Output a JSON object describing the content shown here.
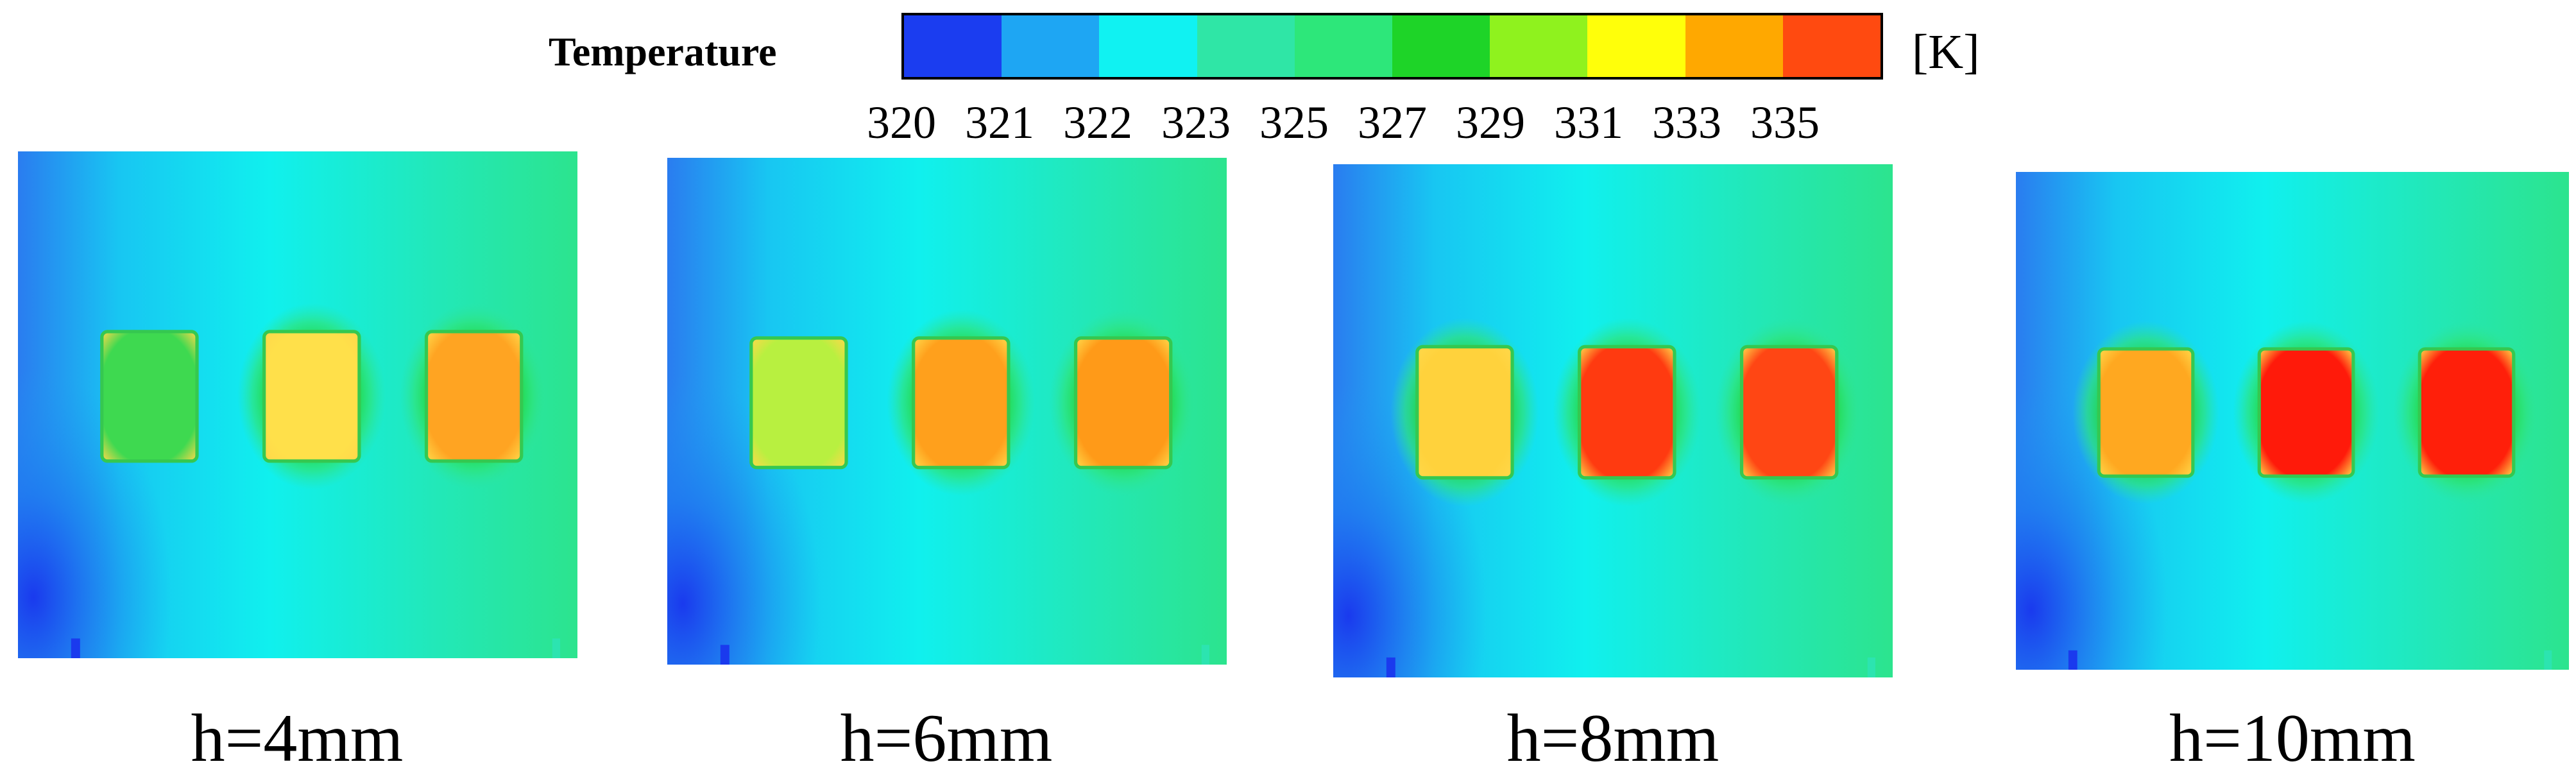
{
  "legend": {
    "title": "Temperature",
    "unit": "[K]",
    "tick_labels": [
      "320",
      "321",
      "322",
      "323",
      "325",
      "327",
      "329",
      "331",
      "333",
      "335"
    ],
    "colors": [
      "#1b3df0",
      "#1ea6f3",
      "#10f2f2",
      "#2fe6a6",
      "#2de77a",
      "#1ed428",
      "#8ff21e",
      "#ffff0a",
      "#ffa800",
      "#ff4a10"
    ]
  },
  "panels": [
    {
      "caption": "h=4mm",
      "chip_colors": [
        "#3ed950",
        "#ffe04a",
        "#ffa422"
      ]
    },
    {
      "caption": "h=6mm",
      "chip_colors": [
        "#b8f040",
        "#ffa01c",
        "#ff9a18"
      ]
    },
    {
      "caption": "h=8mm",
      "chip_colors": [
        "#ffd23c",
        "#ff3a10",
        "#ff4614"
      ]
    },
    {
      "caption": "h=10mm",
      "chip_colors": [
        "#ffa820",
        "#ff1a0a",
        "#ff1f0a"
      ]
    }
  ]
}
